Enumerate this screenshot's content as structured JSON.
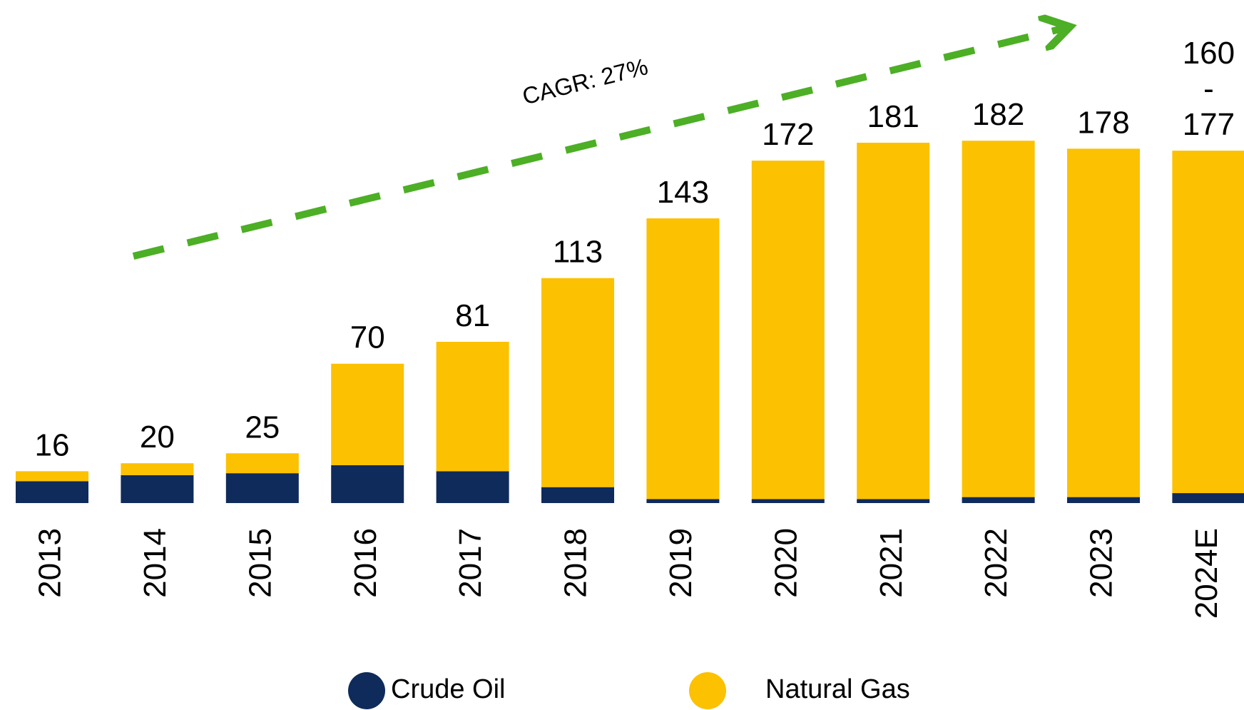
{
  "chart_data": {
    "type": "stacked_bar",
    "annotation": "CAGR: 27%",
    "categories": [
      "2013",
      "2014",
      "2015",
      "2016",
      "2017",
      "2018",
      "2019",
      "2020",
      "2021",
      "2022",
      "2023",
      "2024E"
    ],
    "series": [
      {
        "name": "Crude Oil",
        "color": "#0f2b5b",
        "values": [
          11,
          14,
          15,
          19,
          16,
          8,
          2,
          2,
          2,
          3,
          3,
          5
        ]
      },
      {
        "name": "Natural Gas",
        "color": "#fcc100",
        "values": [
          5,
          6,
          10,
          51,
          65,
          105,
          141,
          170,
          179,
          179,
          175,
          172
        ]
      }
    ],
    "totals": [
      16,
      20,
      25,
      70,
      81,
      113,
      143,
      172,
      181,
      182,
      178,
      177
    ],
    "total_labels": [
      "16",
      "20",
      "25",
      "70",
      "81",
      "113",
      "143",
      "172",
      "181",
      "182",
      "178",
      "160\n-\n177"
    ],
    "legend": "bottom"
  }
}
